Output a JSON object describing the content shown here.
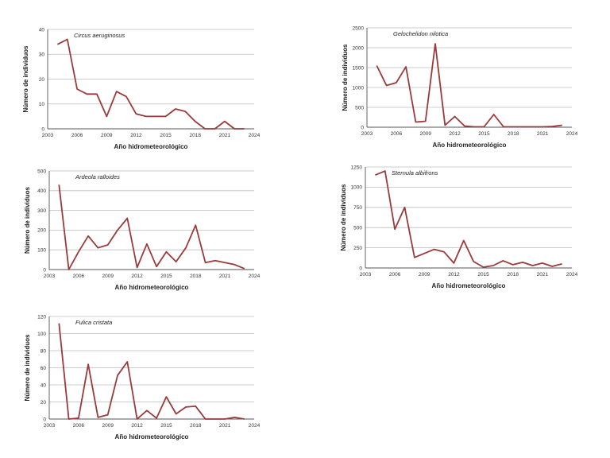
{
  "chart_data": [
    {
      "type": "line",
      "title": "Circus aeruginosus",
      "xlabel": "Año hidrometeorológico",
      "ylabel": "Número de individuos",
      "ylim": [
        0,
        40
      ],
      "yticks": [
        0,
        10,
        20,
        30,
        40
      ],
      "xlim": [
        2003,
        2024
      ],
      "xticks": [
        2003,
        2006,
        2009,
        2012,
        2015,
        2018,
        2021,
        2024
      ],
      "grid": true,
      "series": [
        {
          "x": [
            2004,
            2005,
            2006,
            2007,
            2008,
            2009,
            2010,
            2011,
            2012,
            2013,
            2014,
            2015,
            2016,
            2017,
            2018,
            2019,
            2020,
            2021,
            2022,
            2023
          ],
          "values": [
            34,
            36,
            16,
            14,
            14,
            5,
            15,
            13,
            6,
            5,
            5,
            5,
            8,
            7,
            3,
            0,
            0,
            3,
            0,
            0
          ]
        }
      ],
      "color": "#9b3a3a"
    },
    {
      "type": "line",
      "title": "Gelochelidon nilotica",
      "xlabel": "Año hidrometeorológico",
      "ylabel": "Número de individuos",
      "ylim": [
        0,
        2500
      ],
      "yticks": [
        0,
        500,
        1000,
        1500,
        2000,
        2500
      ],
      "xlim": [
        2003,
        2024
      ],
      "xticks": [
        2003,
        2006,
        2009,
        2012,
        2015,
        2018,
        2021,
        2024
      ],
      "grid": true,
      "series": [
        {
          "x": [
            2004,
            2005,
            2006,
            2007,
            2008,
            2009,
            2010,
            2011,
            2012,
            2013,
            2014,
            2015,
            2016,
            2017,
            2018,
            2019,
            2020,
            2021,
            2022,
            2023
          ],
          "values": [
            1550,
            1050,
            1120,
            1520,
            130,
            150,
            2100,
            50,
            270,
            30,
            10,
            10,
            320,
            10,
            10,
            10,
            10,
            10,
            20,
            50
          ]
        }
      ],
      "color": "#9b3a3a"
    },
    {
      "type": "line",
      "title": "Ardeola ralloides",
      "xlabel": "Año hidrometeorológico",
      "ylabel": "Número de individuos",
      "ylim": [
        0,
        500
      ],
      "yticks": [
        0,
        100,
        200,
        300,
        400,
        500
      ],
      "xlim": [
        2003,
        2024
      ],
      "xticks": [
        2003,
        2006,
        2009,
        2012,
        2015,
        2018,
        2021,
        2024
      ],
      "grid": true,
      "series": [
        {
          "x": [
            2004,
            2005,
            2006,
            2007,
            2008,
            2009,
            2010,
            2011,
            2012,
            2013,
            2014,
            2015,
            2016,
            2017,
            2018,
            2019,
            2020,
            2021,
            2022,
            2023
          ],
          "values": [
            430,
            0,
            90,
            170,
            110,
            125,
            200,
            260,
            10,
            130,
            15,
            90,
            40,
            110,
            225,
            35,
            45,
            35,
            25,
            5
          ]
        }
      ],
      "color": "#9b3a3a"
    },
    {
      "type": "line",
      "title": "Sternula albifrons",
      "xlabel": "Año hidrometeorológico",
      "ylabel": "Número de individuos",
      "ylim": [
        0,
        1250
      ],
      "yticks": [
        0,
        250,
        500,
        750,
        1000,
        1250
      ],
      "xlim": [
        2003,
        2024
      ],
      "xticks": [
        2003,
        2006,
        2009,
        2012,
        2015,
        2018,
        2021,
        2024
      ],
      "grid": true,
      "series": [
        {
          "x": [
            2004,
            2005,
            2006,
            2007,
            2008,
            2009,
            2010,
            2011,
            2012,
            2013,
            2014,
            2015,
            2016,
            2017,
            2018,
            2019,
            2020,
            2021,
            2022,
            2023
          ],
          "values": [
            1150,
            1200,
            480,
            750,
            130,
            180,
            230,
            200,
            60,
            340,
            80,
            10,
            30,
            90,
            40,
            70,
            30,
            60,
            20,
            50
          ]
        }
      ],
      "color": "#9b3a3a"
    },
    {
      "type": "line",
      "title": "Fulica cristata",
      "xlabel": "Año hidrometeorológico",
      "ylabel": "Número de individuos",
      "ylim": [
        0,
        120
      ],
      "yticks": [
        0,
        20,
        40,
        60,
        80,
        100,
        120
      ],
      "xlim": [
        2003,
        2024
      ],
      "xticks": [
        2003,
        2006,
        2009,
        2012,
        2015,
        2018,
        2021,
        2024
      ],
      "grid": true,
      "series": [
        {
          "x": [
            2004,
            2005,
            2006,
            2007,
            2008,
            2009,
            2010,
            2011,
            2012,
            2013,
            2014,
            2015,
            2016,
            2017,
            2018,
            2019,
            2020,
            2021,
            2022,
            2023
          ],
          "values": [
            112,
            0,
            1,
            64,
            2,
            5,
            51,
            67,
            0,
            10,
            1,
            26,
            6,
            14,
            15,
            0,
            0,
            0,
            2,
            0
          ]
        }
      ],
      "color": "#9b3a3a"
    }
  ]
}
